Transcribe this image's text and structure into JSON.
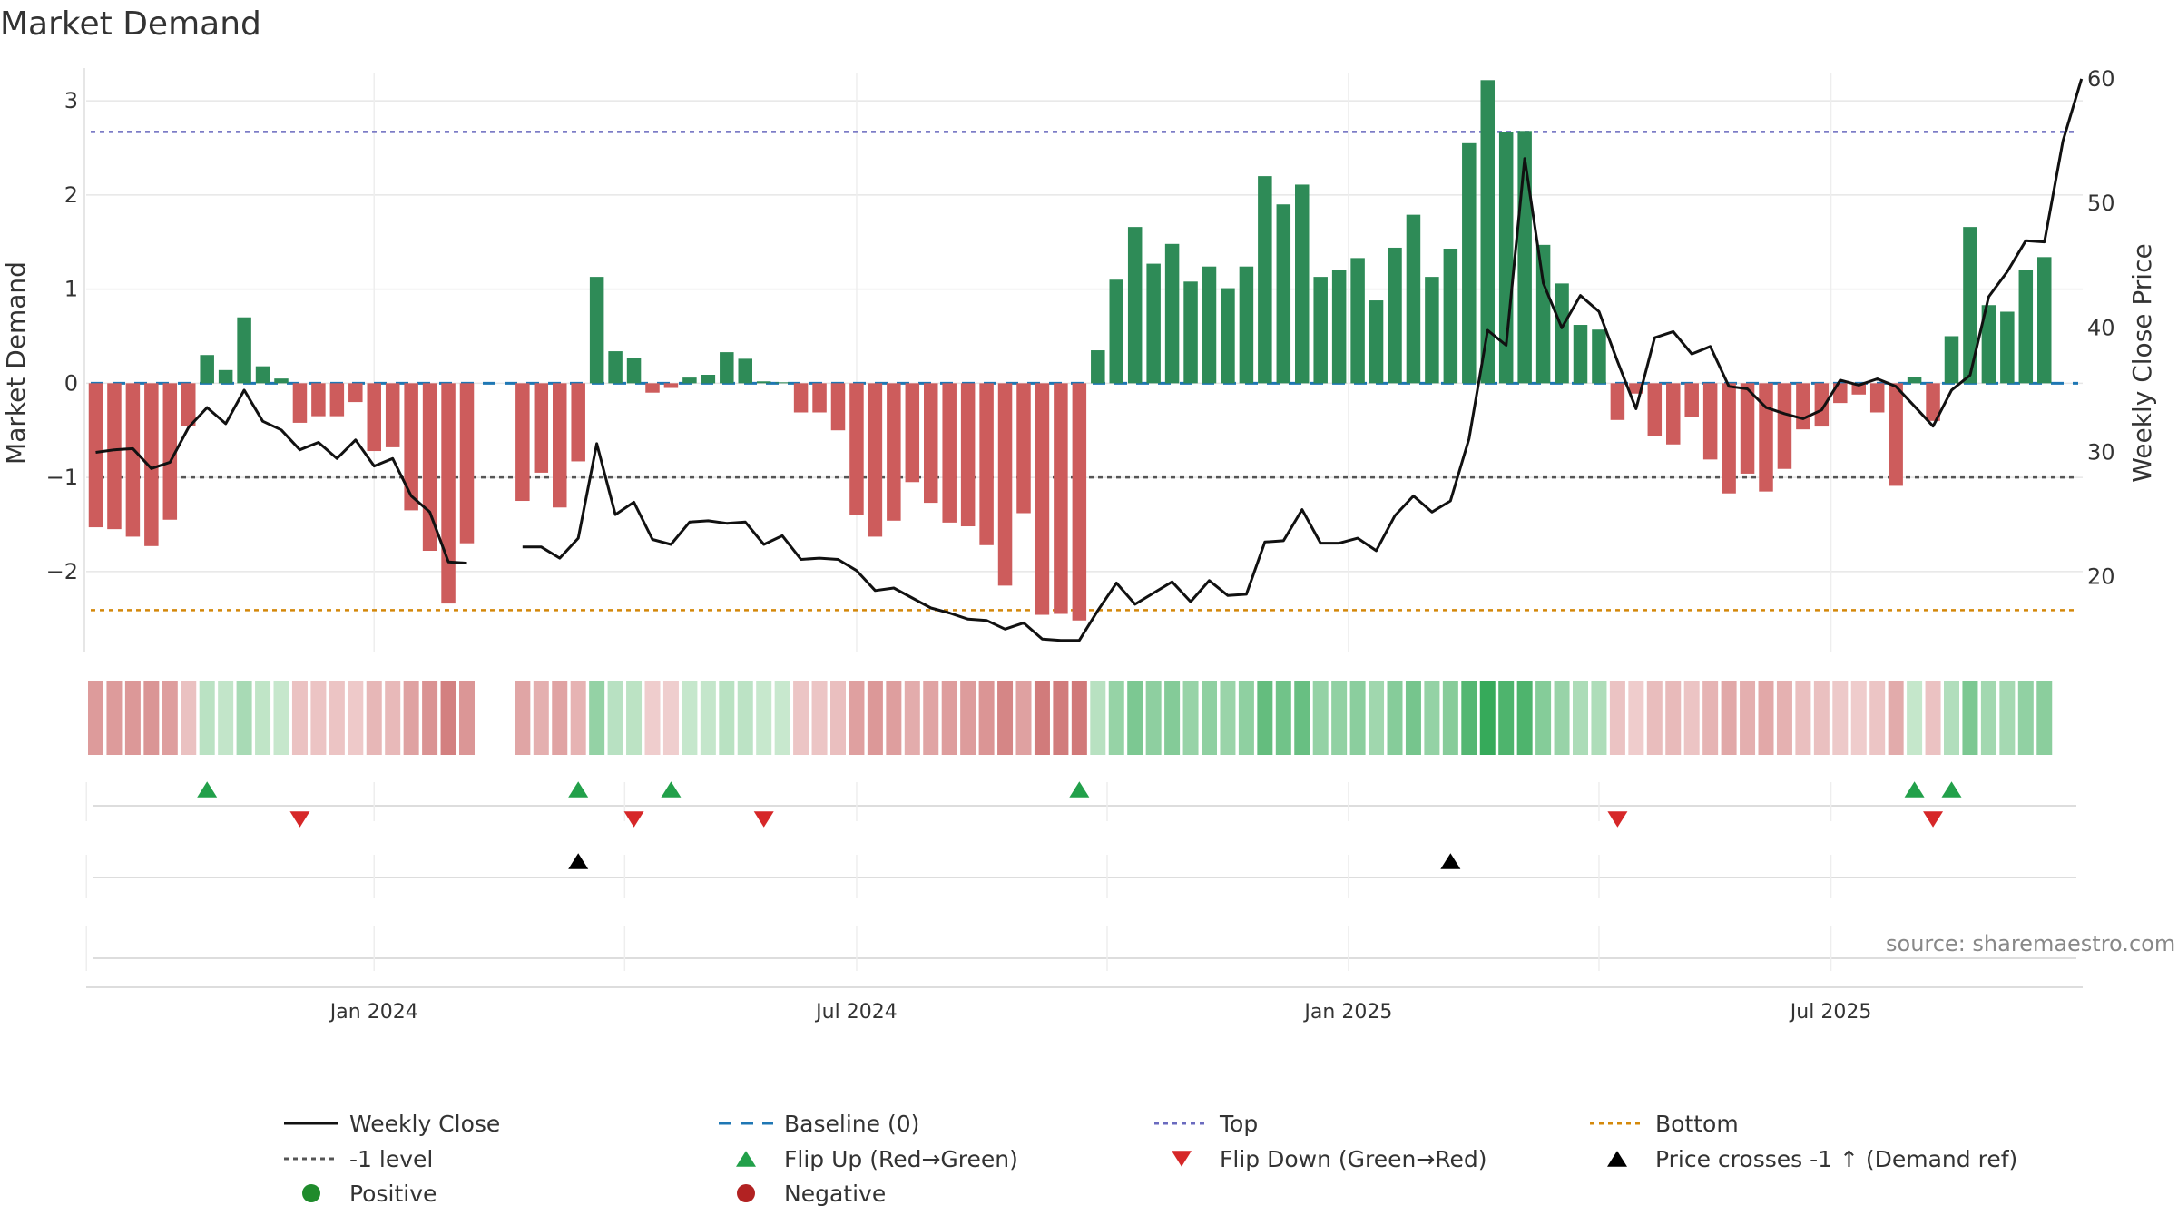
{
  "chart_data": {
    "type": "bar+line",
    "title": "Market Demand",
    "ylabel_left": "Market Demand",
    "ylabel_right": "Weekly Close Price",
    "ylim_left": [
      -2.85,
      3.3
    ],
    "ylim_right": [
      14.0,
      60.5
    ],
    "yticks_left": [
      -2,
      -1,
      0,
      1,
      2,
      3
    ],
    "yticks_left_labels": [
      "−2",
      "−1",
      "0",
      "1",
      "2",
      "3"
    ],
    "yticks_right": [
      20,
      30,
      40,
      50,
      60
    ],
    "yticks_right_labels": [
      "20",
      "30",
      "40",
      "50",
      "60"
    ],
    "x_ticks": [
      {
        "index": 15,
        "label": "Jan 2024"
      },
      {
        "index": 41,
        "label": "Jul 2024"
      },
      {
        "index": 67.5,
        "label": "Jan 2025"
      },
      {
        "index": 93.5,
        "label": "Jul 2025"
      }
    ],
    "reference_lines": {
      "top": 2.67,
      "bottom": -2.41,
      "minus_one": -1.0,
      "baseline": 0
    },
    "demand": [
      -1.53,
      -1.55,
      -1.63,
      -1.73,
      -1.45,
      -0.45,
      0.3,
      0.14,
      0.7,
      0.18,
      0.05,
      -0.42,
      -0.35,
      -0.35,
      -0.2,
      -0.72,
      -0.68,
      -1.35,
      -1.78,
      -2.34,
      -1.7,
      null,
      null,
      -1.25,
      -0.95,
      -1.32,
      -0.83,
      1.13,
      0.34,
      0.27,
      -0.1,
      -0.05,
      0.06,
      0.09,
      0.33,
      0.26,
      0.02,
      0.01,
      -0.31,
      -0.31,
      -0.5,
      -1.4,
      -1.63,
      -1.46,
      -1.05,
      -1.27,
      -1.48,
      -1.52,
      -1.72,
      -2.15,
      -1.38,
      -2.46,
      -2.45,
      -2.52,
      0.35,
      1.1,
      1.66,
      1.27,
      1.48,
      1.08,
      1.24,
      1.01,
      1.24,
      2.2,
      1.9,
      2.11,
      1.13,
      1.2,
      1.33,
      0.88,
      1.44,
      1.79,
      1.13,
      1.43,
      2.55,
      3.22,
      2.67,
      2.68,
      1.47,
      1.06,
      0.62,
      0.57,
      -0.39,
      -0.11,
      -0.56,
      -0.65,
      -0.36,
      -0.81,
      -1.17,
      -0.96,
      -1.15,
      -0.91,
      -0.49,
      -0.46,
      -0.21,
      -0.12,
      -0.31,
      -1.09,
      0.07,
      -0.4,
      0.5,
      1.66,
      0.83,
      0.76,
      1.2,
      1.34
    ],
    "close": [
      30.0,
      30.2,
      30.3,
      28.7,
      29.2,
      32.0,
      33.6,
      32.3,
      35.0,
      32.5,
      31.8,
      30.2,
      30.8,
      29.5,
      31.0,
      28.9,
      29.5,
      26.5,
      25.2,
      21.2,
      21.1,
      null,
      null,
      22.4,
      22.4,
      21.5,
      23.1,
      30.7,
      25.0,
      26.0,
      23.0,
      22.6,
      24.4,
      24.5,
      24.3,
      24.4,
      22.6,
      23.3,
      21.4,
      21.5,
      21.4,
      20.5,
      18.9,
      19.1,
      18.3,
      17.5,
      17.1,
      16.6,
      16.5,
      15.8,
      16.3,
      15.0,
      14.9,
      14.9,
      17.3,
      19.5,
      17.8,
      18.7,
      19.6,
      18.0,
      19.7,
      18.5,
      18.6,
      22.8,
      22.9,
      25.4,
      22.7,
      22.7,
      23.1,
      22.1,
      24.9,
      26.5,
      25.2,
      26.1,
      31.1,
      39.8,
      38.6,
      53.6,
      43.6,
      40.0,
      42.6,
      41.3,
      37.3,
      33.5,
      39.2,
      39.7,
      37.9,
      38.5,
      35.3,
      35.1,
      33.6,
      33.1,
      32.7,
      33.4,
      35.8,
      35.4,
      35.9,
      35.3,
      33.7,
      32.1,
      35.0,
      36.2,
      42.5,
      44.5,
      47.0,
      46.9,
      55.0,
      60.0
    ],
    "flip_up_indices": [
      6,
      26,
      31,
      53,
      98,
      100
    ],
    "flip_down_indices": [
      11,
      29,
      36,
      82,
      99
    ],
    "price_cross_indices": [
      26,
      73
    ],
    "source_text": "source: sharemaestro.com",
    "legend": [
      {
        "label": "Weekly Close",
        "marker": "solid-line",
        "color": "#111111"
      },
      {
        "label": "Baseline (0)",
        "marker": "dash-line",
        "color": "#1f77b4"
      },
      {
        "label": "Top",
        "marker": "dot-line",
        "color": "#6a6abf"
      },
      {
        "label": "Bottom",
        "marker": "dot-line",
        "color": "#d4880a"
      },
      {
        "label": "-1 level",
        "marker": "dot-line",
        "color": "#555555"
      },
      {
        "label": "Flip Up (Red→Green)",
        "marker": "triangle-up",
        "color": "#22a04a"
      },
      {
        "label": "Flip Down (Green→Red)",
        "marker": "triangle-down",
        "color": "#d62728"
      },
      {
        "label": "Price crosses -1 ↑ (Demand ref)",
        "marker": "triangle-up",
        "color": "#000000"
      },
      {
        "label": "Positive",
        "marker": "circle",
        "color": "#1f8b2c"
      },
      {
        "label": "Negative",
        "marker": "circle",
        "color": "#b22222"
      }
    ],
    "colors": {
      "positive_bar": "#2e8b57",
      "negative_bar": "#cd5c5c",
      "grid": "#e6e6e6",
      "baseline": "#1f77b4",
      "top_line": "#6a6abf",
      "bottom_line": "#d4880a",
      "minus_one_line": "#555555",
      "close_line": "#111111"
    }
  }
}
